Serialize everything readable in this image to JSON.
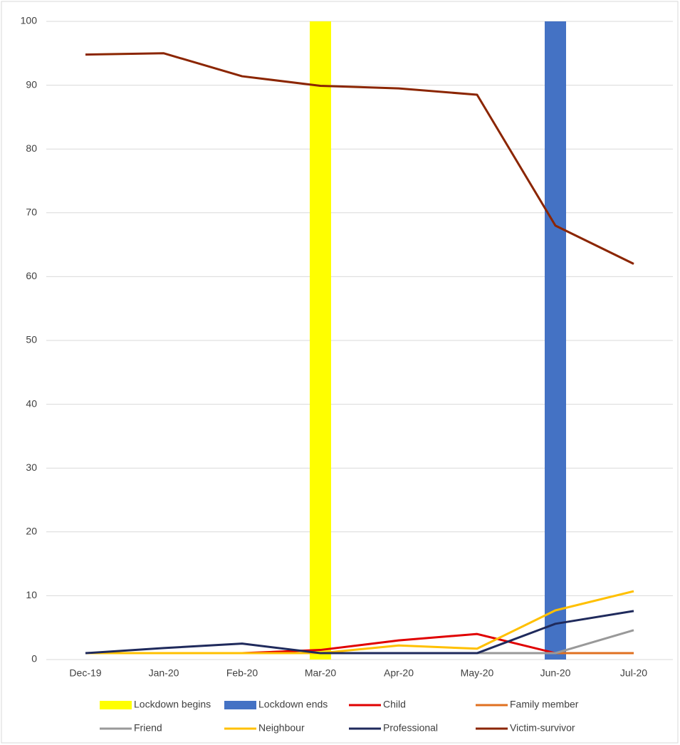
{
  "chart_data": {
    "type": "line",
    "categories": [
      "Dec-19",
      "Jan-20",
      "Feb-20",
      "Mar-20",
      "Apr-20",
      "May-20",
      "Jun-20",
      "Jul-20"
    ],
    "ylim": [
      0,
      100
    ],
    "yticks": [
      0,
      10,
      20,
      30,
      40,
      50,
      60,
      70,
      80,
      90,
      100
    ],
    "grid": true,
    "series": [
      {
        "name": "Lockdown begins",
        "type": "bar",
        "color": "#ffff00",
        "values": [
          null,
          null,
          null,
          100,
          null,
          null,
          null,
          null
        ]
      },
      {
        "name": "Lockdown ends",
        "type": "bar",
        "color": "#4472c4",
        "values": [
          null,
          null,
          null,
          null,
          null,
          null,
          100,
          null
        ]
      },
      {
        "name": "Child",
        "type": "line",
        "color": "#e00000",
        "values": [
          1,
          1,
          1,
          1.5,
          3,
          4,
          1,
          1
        ]
      },
      {
        "name": "Family member",
        "type": "line",
        "color": "#e07020",
        "values": [
          1,
          1,
          1,
          1,
          1,
          1,
          1,
          1
        ]
      },
      {
        "name": "Friend",
        "type": "line",
        "color": "#999999",
        "values": [
          1,
          1,
          1,
          1,
          1,
          1,
          1,
          4.6
        ]
      },
      {
        "name": "Neighbour",
        "type": "line",
        "color": "#ffc000",
        "values": [
          1,
          1,
          1,
          1,
          2.2,
          1.7,
          7.7,
          10.7
        ]
      },
      {
        "name": "Professional",
        "type": "line",
        "color": "#1f2a5c",
        "values": [
          1,
          1.8,
          2.5,
          1,
          1,
          1,
          5.6,
          7.6
        ]
      },
      {
        "name": "Victim-survivor",
        "type": "line",
        "color": "#8b2500",
        "values": [
          94.8,
          95,
          91.4,
          89.9,
          89.5,
          88.5,
          68,
          62
        ]
      }
    ]
  }
}
